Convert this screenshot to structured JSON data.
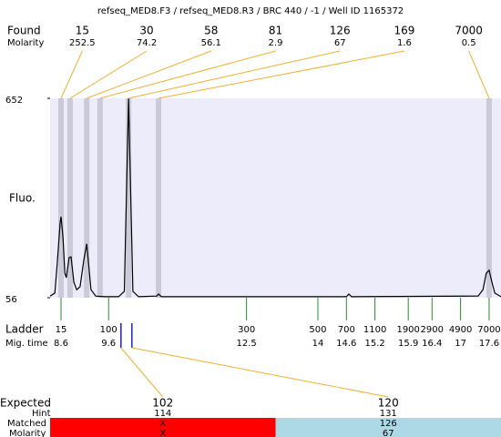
{
  "title": "refseq_MED8.F3 / refseq_MED8.R3 / BRC 440 / -1 / Well ID 1165372",
  "found": {
    "label": "Found",
    "molarity_label": "Molarity",
    "line_color": "#f0b030",
    "band_color": "#cacad8",
    "peaks": [
      {
        "size": 15,
        "molarity": 252.5,
        "time": 8.6
      },
      {
        "size": 30,
        "molarity": 74.2,
        "time": 8.79
      },
      {
        "size": 58,
        "molarity": 56.1,
        "time": 9.14
      },
      {
        "size": 81,
        "molarity": 2.9,
        "time": 9.42
      },
      {
        "size": 126,
        "molarity": 67,
        "time": 10.02
      },
      {
        "size": 169,
        "molarity": 1.6,
        "time": 10.65
      },
      {
        "size": 7000,
        "molarity": 0.5,
        "time": 17.6
      }
    ]
  },
  "trace": {
    "label": "Fluo.",
    "color": "#000000",
    "background": "#ececfa",
    "xlim": [
      8.37,
      17.85
    ],
    "ylim": [
      56,
      652
    ],
    "yticks": [
      56,
      652
    ],
    "x": [
      8.37,
      8.47,
      8.52,
      8.58,
      8.6,
      8.64,
      8.68,
      8.71,
      8.77,
      8.81,
      8.87,
      8.93,
      9.0,
      9.08,
      9.14,
      9.17,
      9.23,
      9.33,
      9.52,
      9.81,
      9.93,
      9.98,
      10.02,
      10.06,
      10.11,
      10.23,
      10.61,
      10.65,
      10.71,
      14.6,
      14.65,
      14.71,
      17.37,
      17.47,
      17.54,
      17.6,
      17.66,
      17.72,
      17.85
    ],
    "y": [
      61,
      70,
      157,
      279,
      298,
      238,
      129,
      116,
      176,
      178,
      102,
      80,
      89,
      170,
      217,
      170,
      80,
      61,
      59,
      59,
      75,
      402,
      652,
      402,
      75,
      59,
      61,
      67,
      59,
      59,
      67,
      59,
      61,
      80,
      129,
      138,
      102,
      70,
      59
    ]
  },
  "ladder": {
    "label": "Ladder",
    "time_label": "Mig. time",
    "color": "#2a8a2a",
    "sizes": [
      15,
      100,
      300,
      500,
      700,
      1100,
      1900,
      2900,
      4900,
      7000
    ],
    "times": [
      8.6,
      9.6,
      12.5,
      14,
      14.6,
      15.2,
      15.9,
      16.4,
      17,
      17.6
    ]
  },
  "expected": {
    "label": "Expected",
    "hint_label": "Hint",
    "matched_label": "Matched",
    "molarity_label": "Molarity",
    "marker_color": "#2020c0",
    "line_color": "#f0b030",
    "items": [
      {
        "size": 102,
        "hint": 114,
        "matched": "X",
        "molarity": "X",
        "time": 9.86,
        "color": "#ff0000"
      },
      {
        "size": 120,
        "hint": 131,
        "matched": 126,
        "molarity": 67,
        "time": 10.09,
        "color": "#add8e6"
      }
    ]
  }
}
